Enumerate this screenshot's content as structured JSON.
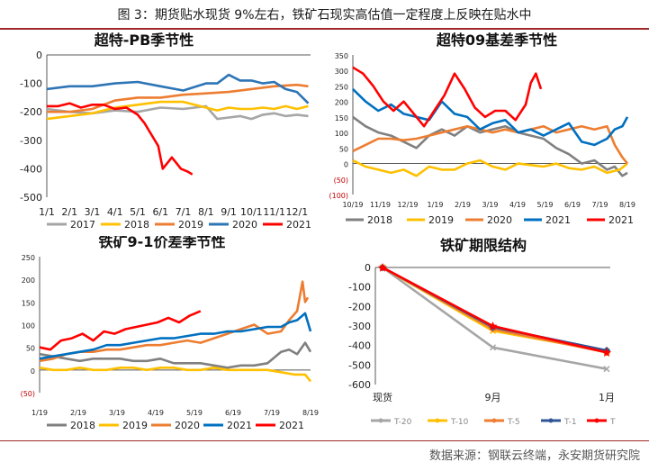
{
  "figure": {
    "title": "图 3：期货贴水现货 9%左右，铁矿石现实高估值一定程度上反映在贴水中",
    "source": "数据来源：钢联云终端，永安期货研究院",
    "accent": "#a0292a"
  },
  "chart_data": [
    {
      "type": "line",
      "title": "超特-PB季节性",
      "categories": [
        "1/1",
        "2/1",
        "3/1",
        "4/1",
        "5/1",
        "6/1",
        "7/1",
        "8/1",
        "9/1",
        "10/1",
        "11/1",
        "12/1"
      ],
      "ylim": [
        -500,
        0
      ],
      "yticks": [
        0,
        -100,
        -200,
        -300,
        -400,
        -500
      ],
      "legend_position": "bottom",
      "series": [
        {
          "name": "2017",
          "color": "#a6a6a6",
          "x": [
            0,
            1,
            2,
            3,
            4,
            5,
            6,
            7,
            7.5,
            8,
            8.5,
            9,
            9.5,
            10,
            10.5,
            11,
            11.5
          ],
          "values": [
            -190,
            -200,
            -205,
            -195,
            -200,
            -185,
            -190,
            -180,
            -225,
            -220,
            -215,
            -225,
            -210,
            -205,
            -215,
            -210,
            -215
          ]
        },
        {
          "name": "2018",
          "color": "#ffc000",
          "x": [
            0,
            1,
            2,
            3,
            4,
            5,
            6,
            7,
            7.5,
            8,
            8.5,
            9,
            9.5,
            10,
            10.5,
            11,
            11.5
          ],
          "values": [
            -225,
            -215,
            -205,
            -185,
            -175,
            -165,
            -165,
            -185,
            -195,
            -185,
            -190,
            -190,
            -185,
            -190,
            -180,
            -190,
            -180
          ]
        },
        {
          "name": "2019",
          "color": "#ed7d31",
          "x": [
            0,
            1,
            2,
            3,
            4,
            5,
            6,
            7,
            8,
            9,
            10,
            11,
            11.5
          ],
          "values": [
            -200,
            -200,
            -190,
            -160,
            -150,
            -150,
            -140,
            -135,
            -130,
            -120,
            -110,
            -105,
            -110
          ]
        },
        {
          "name": "2020",
          "color": "#2e75b6",
          "x": [
            0,
            1,
            2,
            3,
            4,
            5,
            6,
            7,
            7.5,
            8,
            8.5,
            9,
            9.5,
            10,
            10.5,
            11,
            11.5
          ],
          "values": [
            -120,
            -110,
            -110,
            -100,
            -95,
            -110,
            -125,
            -100,
            -100,
            -70,
            -90,
            -90,
            -100,
            -95,
            -120,
            -130,
            -170
          ]
        },
        {
          "name": "2021",
          "color": "#ff0000",
          "x": [
            0,
            0.5,
            1,
            1.5,
            2,
            2.5,
            3,
            3.5,
            4,
            4.3,
            4.6,
            4.9,
            5.1,
            5.3,
            5.5,
            5.7,
            5.9,
            6.2,
            6.4
          ],
          "values": [
            -180,
            -180,
            -170,
            -185,
            -175,
            -175,
            -190,
            -185,
            -210,
            -240,
            -280,
            -320,
            -400,
            -380,
            -360,
            -380,
            -400,
            -410,
            -420
          ]
        }
      ]
    },
    {
      "type": "line",
      "title": "超特09基差季节性",
      "categories": [
        "10/19",
        "11/19",
        "12/19",
        "1/19",
        "2/19",
        "3/19",
        "4/19",
        "5/19",
        "6/19",
        "7/19",
        "8/19"
      ],
      "ylim": [
        -100,
        350
      ],
      "yticks": [
        350,
        300,
        250,
        200,
        150,
        100,
        50,
        0,
        -50,
        -100
      ],
      "ytick_labels": [
        "350",
        "300",
        "250",
        "200",
        "150",
        "100",
        "50",
        "0",
        "(50)",
        "(100)"
      ],
      "legend_position": "bottom",
      "series": [
        {
          "name": "2018",
          "color": "#808080",
          "x": [
            0,
            0.5,
            1,
            1.5,
            2,
            2.5,
            3,
            3.5,
            4,
            4.5,
            5,
            5.5,
            6,
            6.5,
            7,
            7.5,
            8,
            8.5,
            9,
            9.5,
            10,
            10.3,
            10.6,
            10.8
          ],
          "values": [
            150,
            120,
            100,
            90,
            70,
            50,
            90,
            110,
            90,
            120,
            100,
            110,
            120,
            100,
            90,
            80,
            50,
            30,
            0,
            10,
            -20,
            -10,
            -40,
            -30
          ]
        },
        {
          "name": "2019",
          "color": "#ffc000",
          "x": [
            0,
            0.5,
            1,
            1.5,
            2,
            2.5,
            3,
            3.5,
            4,
            4.5,
            5,
            5.5,
            6,
            6.5,
            7,
            7.5,
            8,
            8.5,
            9,
            9.5,
            10,
            10.5,
            10.8
          ],
          "values": [
            10,
            -10,
            -20,
            -30,
            -20,
            -40,
            -10,
            -20,
            -20,
            0,
            10,
            -10,
            -20,
            0,
            -5,
            -10,
            0,
            -15,
            -20,
            -10,
            -30,
            -20,
            0
          ]
        },
        {
          "name": "2020",
          "color": "#ed7d31",
          "x": [
            0,
            0.5,
            1,
            1.5,
            2,
            2.5,
            3,
            3.5,
            4,
            4.5,
            5,
            5.5,
            6,
            6.5,
            7,
            7.5,
            8,
            8.5,
            9,
            9.5,
            10,
            10.3,
            10.6,
            10.8
          ],
          "values": [
            40,
            60,
            80,
            80,
            75,
            80,
            90,
            100,
            110,
            120,
            110,
            100,
            110,
            100,
            110,
            120,
            100,
            110,
            120,
            110,
            120,
            60,
            20,
            0
          ]
        },
        {
          "name": "2021",
          "color": "#0070c0",
          "x": [
            0,
            0.5,
            1,
            1.5,
            2,
            2.5,
            3,
            3.5,
            4,
            4.5,
            5,
            5.5,
            6,
            6.5,
            7,
            7.5,
            8,
            8.5,
            9,
            9.5,
            10,
            10.3,
            10.6,
            10.8
          ],
          "values": [
            240,
            200,
            170,
            190,
            160,
            150,
            140,
            200,
            160,
            150,
            110,
            130,
            140,
            100,
            110,
            90,
            110,
            130,
            70,
            60,
            80,
            110,
            120,
            150
          ]
        },
        {
          "name": "2021",
          "color": "#ff0000",
          "x": [
            0,
            0.4,
            0.8,
            1.2,
            1.6,
            2,
            2.4,
            2.8,
            3.2,
            3.6,
            4,
            4.4,
            4.8,
            5.2,
            5.6,
            6,
            6.4,
            6.8,
            7,
            7.2,
            7.4
          ],
          "values": [
            310,
            290,
            250,
            200,
            170,
            200,
            160,
            120,
            170,
            220,
            290,
            240,
            180,
            150,
            170,
            170,
            140,
            190,
            260,
            290,
            240
          ]
        }
      ]
    },
    {
      "type": "line",
      "title": "铁矿9-1价差季节性",
      "categories": [
        "1/19",
        "2/19",
        "3/19",
        "4/19",
        "5/19",
        "6/19",
        "7/19",
        "8/19"
      ],
      "ylim": [
        -50,
        250
      ],
      "yticks": [
        250,
        200,
        150,
        100,
        50,
        0,
        -50
      ],
      "ytick_labels": [
        "250",
        "200",
        "150",
        "100",
        "50",
        "0",
        "(50)"
      ],
      "legend_position": "bottom",
      "series": [
        {
          "name": "2018",
          "color": "#808080",
          "x": [
            0,
            0.5,
            1,
            1.5,
            2,
            2.5,
            3,
            3.5,
            4,
            4.5,
            5,
            5.5,
            6,
            6.5,
            7,
            7.5,
            8,
            8.5,
            9,
            9.3,
            9.6,
            9.9,
            10.1
          ],
          "values": [
            35,
            30,
            25,
            20,
            25,
            25,
            25,
            20,
            20,
            25,
            15,
            15,
            15,
            10,
            5,
            10,
            10,
            15,
            40,
            45,
            35,
            60,
            40
          ]
        },
        {
          "name": "2019",
          "color": "#ffc000",
          "x": [
            0,
            0.5,
            1,
            1.5,
            2,
            2.5,
            3,
            3.5,
            4,
            4.5,
            5,
            5.5,
            6,
            6.5,
            7,
            7.5,
            8,
            8.5,
            9,
            9.5,
            9.9,
            10.1
          ],
          "values": [
            5,
            0,
            0,
            5,
            0,
            0,
            5,
            5,
            0,
            5,
            5,
            0,
            0,
            5,
            0,
            0,
            0,
            0,
            -5,
            -10,
            -10,
            -25
          ]
        },
        {
          "name": "2020",
          "color": "#ed7d31",
          "x": [
            0,
            0.5,
            1,
            1.5,
            2,
            2.5,
            3,
            3.5,
            4,
            4.5,
            5,
            5.5,
            6,
            6.5,
            7,
            7.5,
            8,
            8.5,
            9,
            9.3,
            9.6,
            9.8,
            9.9,
            10.0
          ],
          "values": [
            20,
            25,
            35,
            40,
            40,
            45,
            45,
            50,
            55,
            55,
            60,
            65,
            60,
            70,
            80,
            90,
            100,
            80,
            85,
            110,
            130,
            195,
            150,
            160
          ]
        },
        {
          "name": "2021",
          "color": "#0070c0",
          "x": [
            0,
            0.5,
            1,
            1.5,
            2,
            2.5,
            3,
            3.5,
            4,
            4.5,
            5,
            5.5,
            6,
            6.5,
            7,
            7.5,
            8,
            8.5,
            9,
            9.3,
            9.6,
            9.9,
            10.1
          ],
          "values": [
            25,
            30,
            35,
            40,
            45,
            55,
            55,
            60,
            65,
            70,
            70,
            75,
            80,
            80,
            85,
            85,
            90,
            95,
            95,
            105,
            110,
            125,
            85
          ]
        },
        {
          "name": "2021",
          "color": "#ff0000",
          "x": [
            0,
            0.4,
            0.8,
            1.2,
            1.6,
            2,
            2.4,
            2.8,
            3.2,
            3.6,
            4,
            4.4,
            4.8,
            5.2,
            5.6,
            6
          ],
          "values": [
            50,
            45,
            65,
            70,
            80,
            65,
            85,
            80,
            90,
            95,
            100,
            105,
            115,
            105,
            120,
            130
          ]
        }
      ]
    },
    {
      "type": "line",
      "title": "铁矿期限结构",
      "categories": [
        "现货",
        "9月",
        "1月"
      ],
      "ylim": [
        -600,
        0
      ],
      "yticks": [
        0,
        -100,
        -200,
        -300,
        -400,
        -500,
        -600
      ],
      "legend_position": "bottom",
      "series": [
        {
          "name": "T-20",
          "color": "#a6a6a6",
          "values": [
            0,
            -410,
            -520
          ]
        },
        {
          "name": "T-10",
          "color": "#ffc000",
          "values": [
            0,
            -325,
            -430
          ]
        },
        {
          "name": "T-5",
          "color": "#ed7d31",
          "values": [
            0,
            -315,
            -435
          ]
        },
        {
          "name": "T-1",
          "color": "#2f5597",
          "values": [
            0,
            -305,
            -425
          ]
        },
        {
          "name": "T",
          "color": "#ff0000",
          "values": [
            0,
            -300,
            -435
          ]
        }
      ]
    }
  ]
}
